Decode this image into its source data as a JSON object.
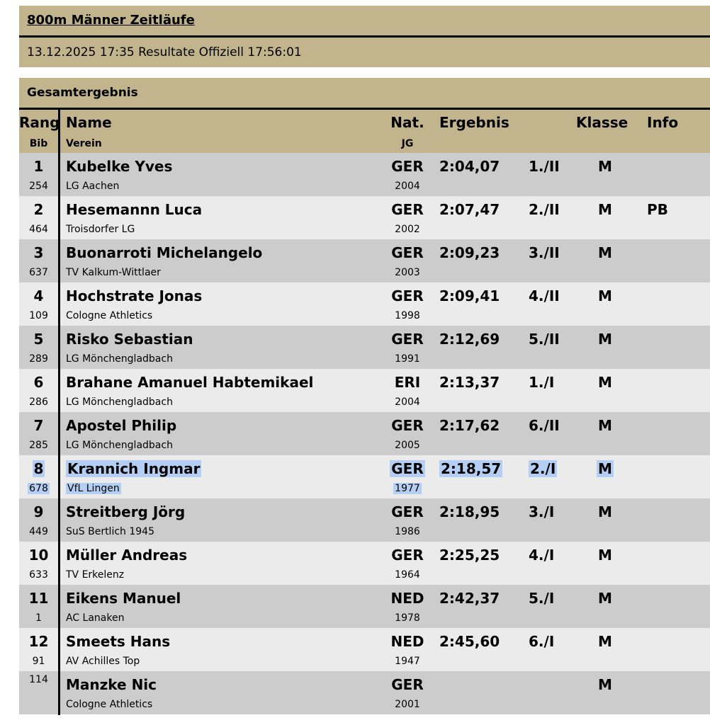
{
  "title": "800m Männer Zeitläufe",
  "subtitle": "13.12.2025 17:35 Resultate Offiziell 17:56:01",
  "section": "Gesamtergebnis",
  "headers": {
    "rang": "Rang",
    "bib": "Bib",
    "name": "Name",
    "verein": "Verein",
    "nat": "Nat.",
    "jg": "JG",
    "ergebnis": "Ergebnis",
    "klasse": "Klasse",
    "info": "Info"
  },
  "colors": {
    "header_bg": "#c2b58e",
    "row_dark": "#cccccc",
    "row_light": "#ebebeb",
    "selection": "#b4cff3"
  },
  "rows": [
    {
      "rang": "1",
      "bib": "254",
      "name": "Kubelke Yves",
      "verein": "LG Aachen",
      "nat": "GER",
      "jg": "2004",
      "ergebnis": "2:04,07",
      "klassenrang": "1./II",
      "klasse": "M",
      "info": ""
    },
    {
      "rang": "2",
      "bib": "464",
      "name": "Hesemannn Luca",
      "verein": "Troisdorfer LG",
      "nat": "GER",
      "jg": "2002",
      "ergebnis": "2:07,47",
      "klassenrang": "2./II",
      "klasse": "M",
      "info": "PB"
    },
    {
      "rang": "3",
      "bib": "637",
      "name": "Buonarroti Michelangelo",
      "verein": "TV Kalkum-Wittlaer",
      "nat": "GER",
      "jg": "2003",
      "ergebnis": "2:09,23",
      "klassenrang": "3./II",
      "klasse": "M",
      "info": ""
    },
    {
      "rang": "4",
      "bib": "109",
      "name": "Hochstrate Jonas",
      "verein": "Cologne Athletics",
      "nat": "GER",
      "jg": "1998",
      "ergebnis": "2:09,41",
      "klassenrang": "4./II",
      "klasse": "M",
      "info": ""
    },
    {
      "rang": "5",
      "bib": "289",
      "name": "Risko Sebastian",
      "verein": "LG Mönchengladbach",
      "nat": "GER",
      "jg": "1991",
      "ergebnis": "2:12,69",
      "klassenrang": "5./II",
      "klasse": "M",
      "info": ""
    },
    {
      "rang": "6",
      "bib": "286",
      "name": "Brahane Amanuel Habtemikael",
      "verein": "LG Mönchengladbach",
      "nat": "ERI",
      "jg": "2004",
      "ergebnis": "2:13,37",
      "klassenrang": "1./I",
      "klasse": "M",
      "info": ""
    },
    {
      "rang": "7",
      "bib": "285",
      "name": "Apostel Philip",
      "verein": "LG Mönchengladbach",
      "nat": "GER",
      "jg": "2005",
      "ergebnis": "2:17,62",
      "klassenrang": "6./II",
      "klasse": "M",
      "info": ""
    },
    {
      "rang": "8",
      "bib": "678",
      "name": "Krannich Ingmar",
      "verein": "VfL Lingen",
      "nat": "GER",
      "jg": "1977",
      "ergebnis": "2:18,57",
      "klassenrang": "2./I",
      "klasse": "M",
      "info": "",
      "selected": true
    },
    {
      "rang": "9",
      "bib": "449",
      "name": "Streitberg Jörg",
      "verein": "SuS Bertlich 1945",
      "nat": "GER",
      "jg": "1986",
      "ergebnis": "2:18,95",
      "klassenrang": "3./I",
      "klasse": "M",
      "info": ""
    },
    {
      "rang": "10",
      "bib": "633",
      "name": "Müller Andreas",
      "verein": "TV Erkelenz",
      "nat": "GER",
      "jg": "1964",
      "ergebnis": "2:25,25",
      "klassenrang": "4./I",
      "klasse": "M",
      "info": ""
    },
    {
      "rang": "11",
      "bib": "1",
      "name": "Eikens Manuel",
      "verein": "AC Lanaken",
      "nat": "NED",
      "jg": "1978",
      "ergebnis": "2:42,37",
      "klassenrang": "5./I",
      "klasse": "M",
      "info": ""
    },
    {
      "rang": "12",
      "bib": "91",
      "name": "Smeets Hans",
      "verein": "AV Achilles Top",
      "nat": "NED",
      "jg": "1947",
      "ergebnis": "2:45,60",
      "klassenrang": "6./I",
      "klasse": "M",
      "info": ""
    },
    {
      "rang": "",
      "bib": "114",
      "name": "Manzke Nic",
      "verein": "Cologne Athletics",
      "nat": "GER",
      "jg": "2001",
      "ergebnis": "",
      "klassenrang": "",
      "klasse": "M",
      "info": ""
    }
  ]
}
